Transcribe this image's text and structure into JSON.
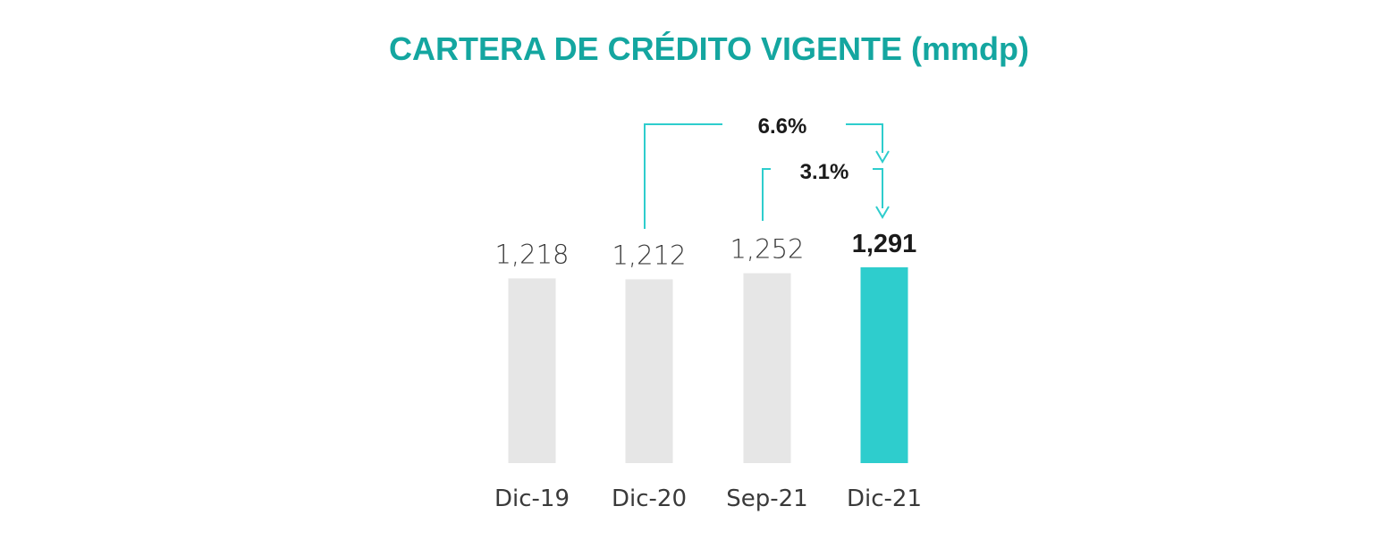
{
  "chart_data": {
    "type": "bar",
    "title": "CARTERA DE CRÉDITO VIGENTE (mmdp)",
    "categories": [
      "Dic-19",
      "Dic-20",
      "Sep-21",
      "Dic-21"
    ],
    "values": [
      1218,
      1212,
      1252,
      1291
    ],
    "value_labels": [
      "1,218",
      "1,212",
      "1,252",
      "1,291"
    ],
    "highlight_index": 3,
    "colors": {
      "title": "#14A6A0",
      "bar": "#E6E6E6",
      "highlight_bar": "#2ECDCD",
      "connector": "#2ECDCD"
    },
    "annotations": [
      {
        "label": "6.6%",
        "from": "Dic-20",
        "to": "Dic-21"
      },
      {
        "label": "3.1%",
        "from": "Sep-21",
        "to": "Dic-21"
      }
    ],
    "xlabel": "",
    "ylabel": "",
    "grid": false,
    "legend": "none"
  }
}
